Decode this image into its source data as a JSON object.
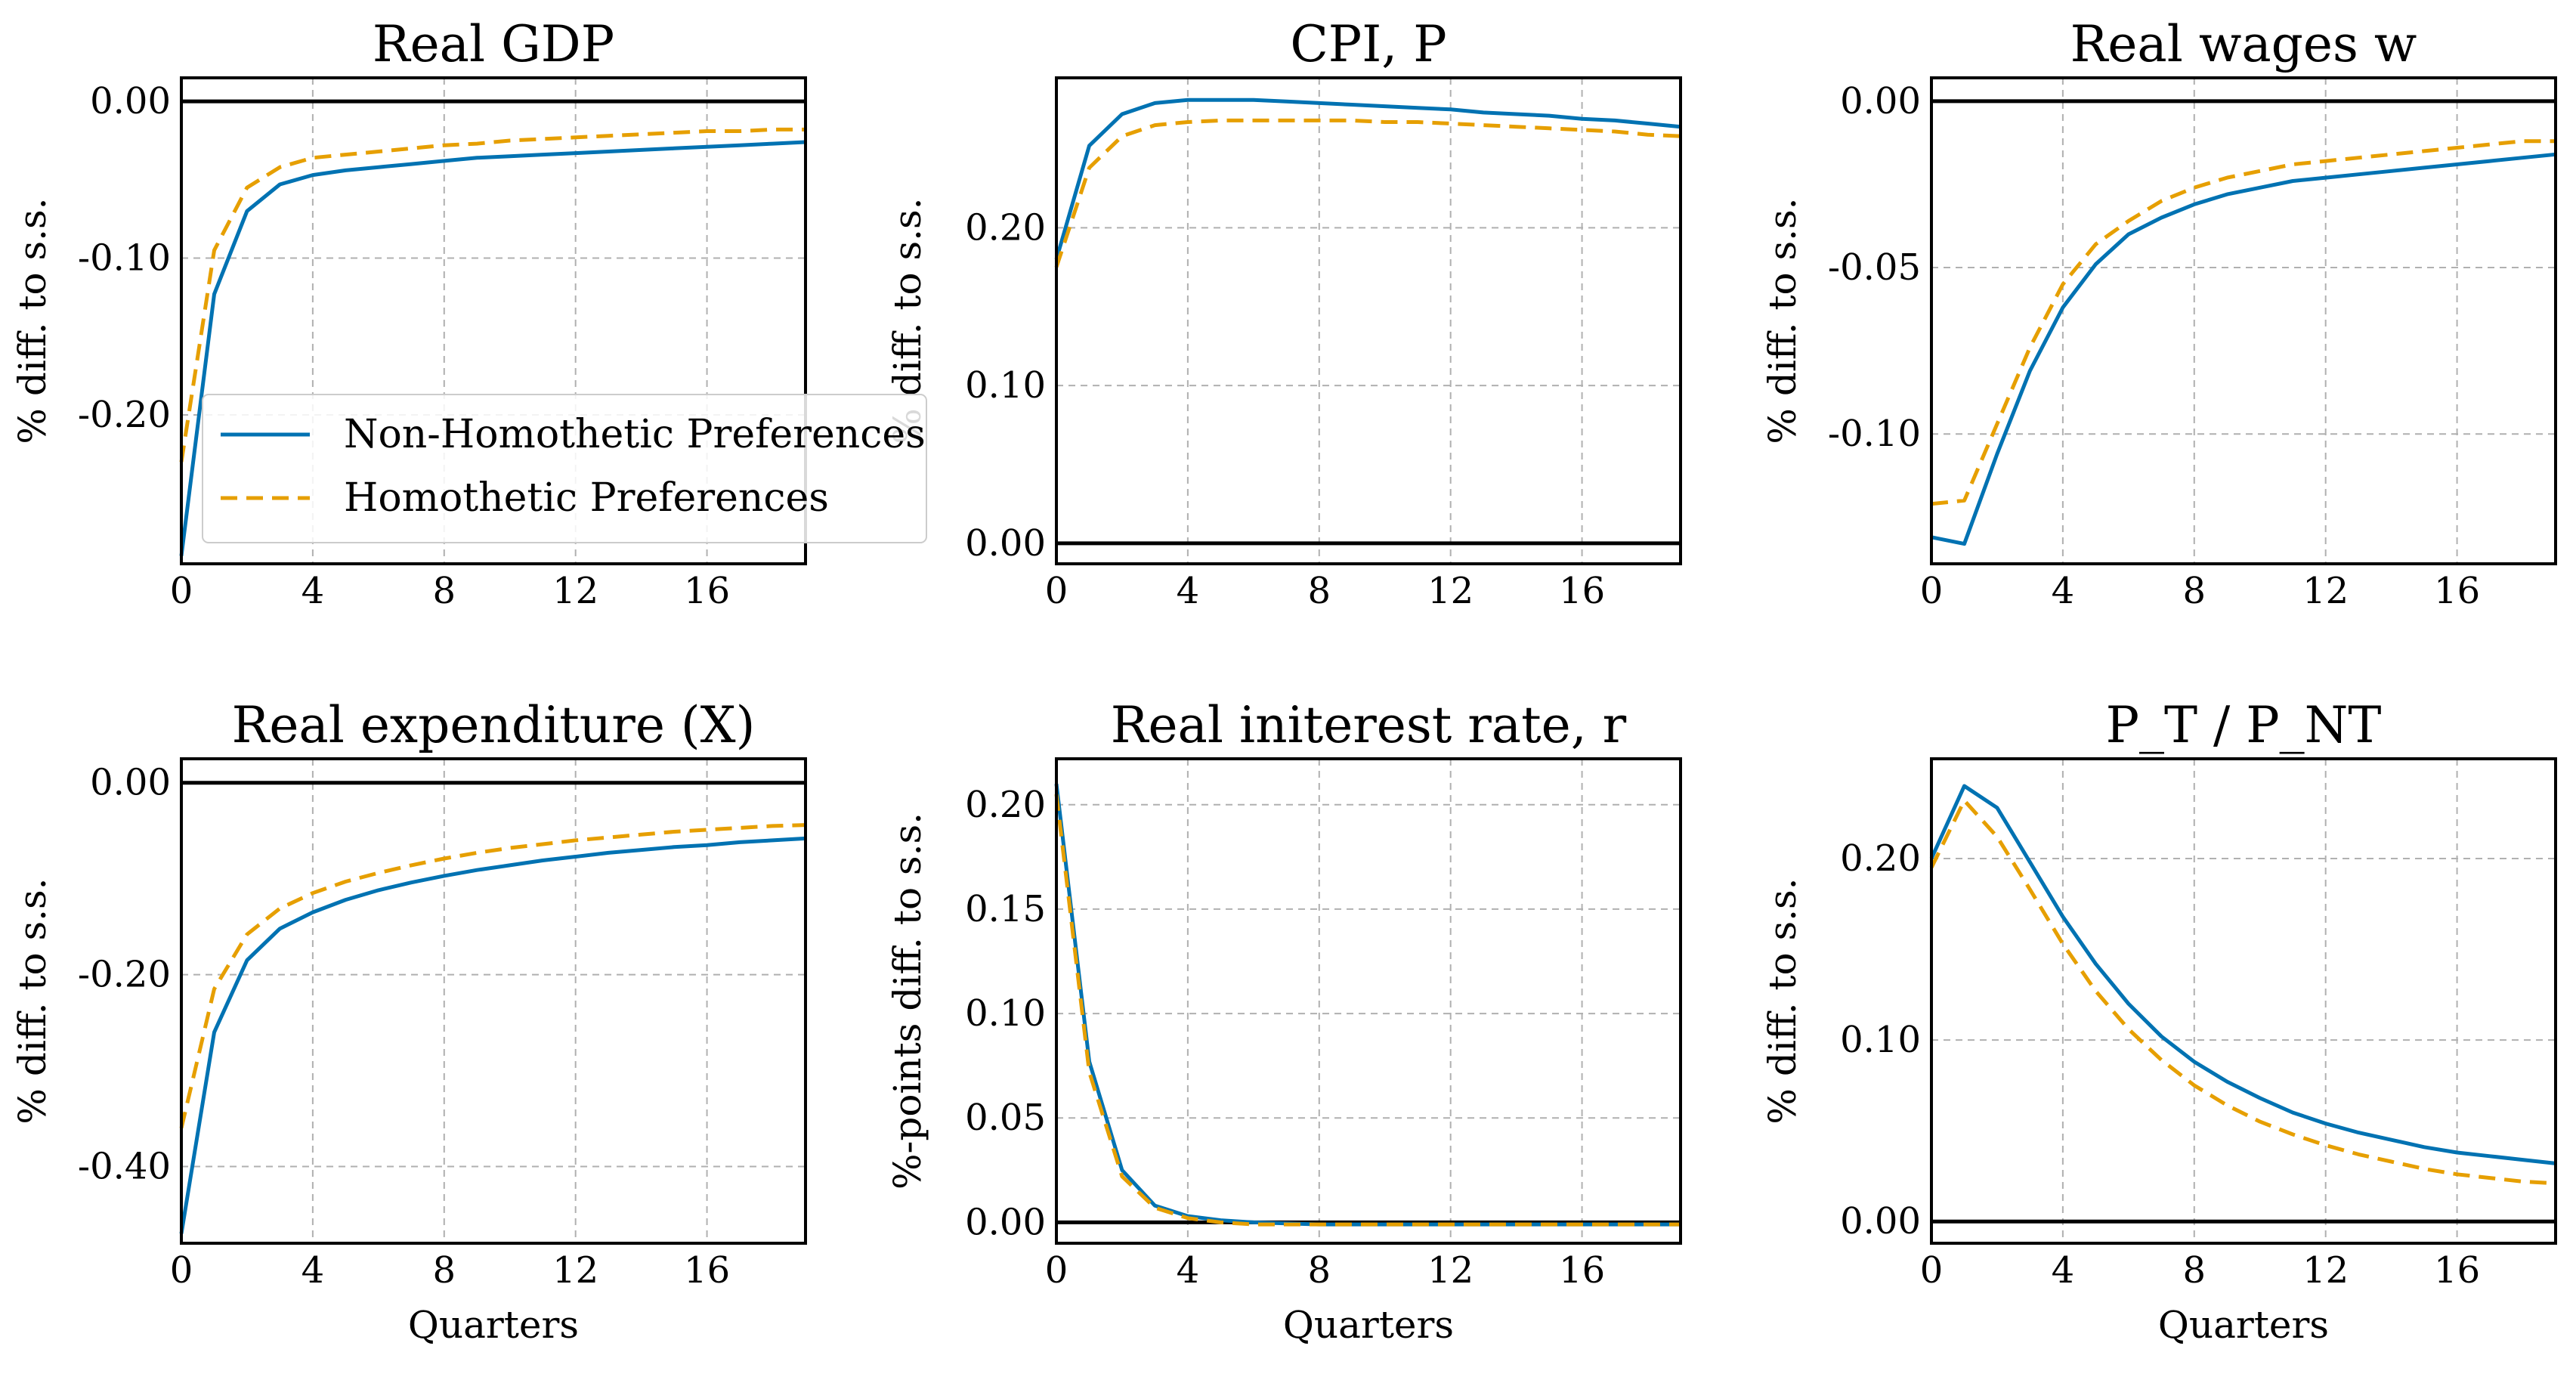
{
  "colors": {
    "non_homothetic": "#0072b2",
    "homothetic": "#e69f00"
  },
  "legend": {
    "location": "lower-right of first panel",
    "entries": [
      {
        "label": "Non-Homothetic Preferences",
        "style": "solid",
        "color": "#0072b2"
      },
      {
        "label": "Homothetic Preferences",
        "style": "dashed",
        "color": "#e69f00"
      }
    ]
  },
  "chart_data": [
    {
      "type": "line",
      "title": "Real GDP",
      "ylabel": "% diff. to s.s.",
      "xlabel": "",
      "xlim": [
        0,
        19
      ],
      "ylim": [
        -0.295,
        0.015
      ],
      "xticks": [
        0,
        4,
        8,
        12,
        16
      ],
      "yticks": [
        0.0,
        -0.1,
        -0.2
      ],
      "ytick_labels": [
        "0.00",
        "-0.10",
        "-0.20"
      ],
      "grid": true,
      "x": [
        0,
        1,
        2,
        3,
        4,
        5,
        6,
        7,
        8,
        9,
        10,
        11,
        12,
        13,
        14,
        15,
        16,
        17,
        18,
        19
      ],
      "series": [
        {
          "name": "Non-Homothetic Preferences",
          "style": "solid",
          "values": [
            -0.29,
            -0.123,
            -0.07,
            -0.053,
            -0.047,
            -0.044,
            -0.042,
            -0.04,
            -0.038,
            -0.036,
            -0.035,
            -0.034,
            -0.033,
            -0.032,
            -0.031,
            -0.03,
            -0.029,
            -0.028,
            -0.027,
            -0.026
          ]
        },
        {
          "name": "Homothetic Preferences",
          "style": "dashed",
          "values": [
            -0.23,
            -0.095,
            -0.055,
            -0.042,
            -0.036,
            -0.034,
            -0.032,
            -0.03,
            -0.028,
            -0.027,
            -0.025,
            -0.024,
            -0.023,
            -0.022,
            -0.021,
            -0.02,
            -0.019,
            -0.019,
            -0.018,
            -0.018
          ]
        }
      ]
    },
    {
      "type": "line",
      "title": "CPI, P",
      "ylabel": "% diff. to s.s.",
      "xlabel": "",
      "xlim": [
        0,
        19
      ],
      "ylim": [
        -0.013,
        0.295
      ],
      "xticks": [
        0,
        4,
        8,
        12,
        16
      ],
      "yticks": [
        0.0,
        0.1,
        0.2
      ],
      "ytick_labels": [
        "0.00",
        "0.10",
        "0.20"
      ],
      "grid": true,
      "x": [
        0,
        1,
        2,
        3,
        4,
        5,
        6,
        7,
        8,
        9,
        10,
        11,
        12,
        13,
        14,
        15,
        16,
        17,
        18,
        19
      ],
      "series": [
        {
          "name": "Non-Homothetic Preferences",
          "style": "solid",
          "values": [
            0.18,
            0.252,
            0.272,
            0.279,
            0.281,
            0.281,
            0.281,
            0.28,
            0.279,
            0.278,
            0.277,
            0.276,
            0.275,
            0.273,
            0.272,
            0.271,
            0.269,
            0.268,
            0.266,
            0.264
          ]
        },
        {
          "name": "Homothetic Preferences",
          "style": "dashed",
          "values": [
            0.175,
            0.238,
            0.258,
            0.265,
            0.267,
            0.268,
            0.268,
            0.268,
            0.268,
            0.268,
            0.267,
            0.267,
            0.266,
            0.265,
            0.264,
            0.263,
            0.262,
            0.261,
            0.259,
            0.258
          ]
        }
      ]
    },
    {
      "type": "line",
      "title": "Real wages w",
      "ylabel": "% diff. to s.s.",
      "xlabel": "",
      "xlim": [
        0,
        19
      ],
      "ylim": [
        -0.139,
        0.007
      ],
      "xticks": [
        0,
        4,
        8,
        12,
        16
      ],
      "yticks": [
        0.0,
        -0.05,
        -0.1
      ],
      "ytick_labels": [
        "0.00",
        "-0.05",
        "-0.10"
      ],
      "grid": true,
      "x": [
        0,
        1,
        2,
        3,
        4,
        5,
        6,
        7,
        8,
        9,
        10,
        11,
        12,
        13,
        14,
        15,
        16,
        17,
        18,
        19
      ],
      "series": [
        {
          "name": "Non-Homothetic Preferences",
          "style": "solid",
          "values": [
            -0.131,
            -0.133,
            -0.106,
            -0.081,
            -0.062,
            -0.049,
            -0.04,
            -0.035,
            -0.031,
            -0.028,
            -0.026,
            -0.024,
            -0.023,
            -0.022,
            -0.021,
            -0.02,
            -0.019,
            -0.018,
            -0.017,
            -0.016
          ]
        },
        {
          "name": "Homothetic Preferences",
          "style": "dashed",
          "values": [
            -0.121,
            -0.12,
            -0.097,
            -0.074,
            -0.055,
            -0.043,
            -0.036,
            -0.03,
            -0.026,
            -0.023,
            -0.021,
            -0.019,
            -0.018,
            -0.017,
            -0.016,
            -0.015,
            -0.014,
            -0.013,
            -0.012,
            -0.012
          ]
        }
      ]
    },
    {
      "type": "line",
      "title": "Real expenditure (X)",
      "ylabel": "% diff. to s.s.",
      "xlabel": "Quarters",
      "xlim": [
        0,
        19
      ],
      "ylim": [
        -0.48,
        0.025
      ],
      "xticks": [
        0,
        4,
        8,
        12,
        16
      ],
      "yticks": [
        0.0,
        -0.2,
        -0.4
      ],
      "ytick_labels": [
        "0.00",
        "-0.20",
        "-0.40"
      ],
      "grid": true,
      "x": [
        0,
        1,
        2,
        3,
        4,
        5,
        6,
        7,
        8,
        9,
        10,
        11,
        12,
        13,
        14,
        15,
        16,
        17,
        18,
        19
      ],
      "series": [
        {
          "name": "Non-Homothetic Preferences",
          "style": "solid",
          "values": [
            -0.47,
            -0.26,
            -0.185,
            -0.152,
            -0.135,
            -0.122,
            -0.112,
            -0.104,
            -0.097,
            -0.091,
            -0.086,
            -0.081,
            -0.077,
            -0.073,
            -0.07,
            -0.067,
            -0.065,
            -0.062,
            -0.06,
            -0.058
          ]
        },
        {
          "name": "Homothetic Preferences",
          "style": "dashed",
          "values": [
            -0.36,
            -0.215,
            -0.158,
            -0.131,
            -0.115,
            -0.103,
            -0.094,
            -0.086,
            -0.079,
            -0.073,
            -0.068,
            -0.064,
            -0.06,
            -0.057,
            -0.054,
            -0.051,
            -0.049,
            -0.047,
            -0.045,
            -0.044
          ]
        }
      ]
    },
    {
      "type": "line",
      "title": "Real initerest rate, r",
      "ylabel": "%-points diff. to s.s.",
      "xlabel": "Quarters",
      "xlim": [
        0,
        19
      ],
      "ylim": [
        -0.01,
        0.222
      ],
      "xticks": [
        0,
        4,
        8,
        12,
        16
      ],
      "yticks": [
        0.0,
        0.05,
        0.1,
        0.15,
        0.2
      ],
      "ytick_labels": [
        "0.00",
        "0.05",
        "0.10",
        "0.15",
        "0.20"
      ],
      "grid": true,
      "x": [
        0,
        1,
        2,
        3,
        4,
        5,
        6,
        7,
        8,
        9,
        10,
        11,
        12,
        13,
        14,
        15,
        16,
        17,
        18,
        19
      ],
      "series": [
        {
          "name": "Non-Homothetic Preferences",
          "style": "solid",
          "values": [
            0.21,
            0.077,
            0.025,
            0.008,
            0.003,
            0.001,
            0.0,
            -0.0005,
            -0.001,
            -0.001,
            -0.001,
            -0.001,
            -0.001,
            -0.001,
            -0.001,
            -0.001,
            -0.001,
            -0.001,
            -0.001,
            -0.001
          ]
        },
        {
          "name": "Homothetic Preferences",
          "style": "dashed",
          "values": [
            0.205,
            0.072,
            0.022,
            0.007,
            0.002,
            0.0,
            -0.001,
            -0.001,
            -0.001,
            -0.001,
            -0.001,
            -0.001,
            -0.001,
            -0.001,
            -0.001,
            -0.001,
            -0.001,
            -0.001,
            -0.001,
            -0.001
          ]
        }
      ]
    },
    {
      "type": "line",
      "title": "P_T / P_NT",
      "ylabel": "% diff. to s.s.",
      "xlabel": "Quarters",
      "xlim": [
        0,
        19
      ],
      "ylim": [
        -0.012,
        0.255
      ],
      "xticks": [
        0,
        4,
        8,
        12,
        16
      ],
      "yticks": [
        0.0,
        0.1,
        0.2
      ],
      "ytick_labels": [
        "0.00",
        "0.10",
        "0.20"
      ],
      "grid": true,
      "x": [
        0,
        1,
        2,
        3,
        4,
        5,
        6,
        7,
        8,
        9,
        10,
        11,
        12,
        13,
        14,
        15,
        16,
        17,
        18,
        19
      ],
      "series": [
        {
          "name": "Non-Homothetic Preferences",
          "style": "solid",
          "values": [
            0.2,
            0.24,
            0.228,
            0.198,
            0.168,
            0.142,
            0.12,
            0.102,
            0.088,
            0.077,
            0.068,
            0.06,
            0.054,
            0.049,
            0.045,
            0.041,
            0.038,
            0.036,
            0.034,
            0.032
          ]
        },
        {
          "name": "Homothetic Preferences",
          "style": "dashed",
          "values": [
            0.195,
            0.232,
            0.212,
            0.183,
            0.153,
            0.127,
            0.106,
            0.089,
            0.075,
            0.064,
            0.055,
            0.048,
            0.042,
            0.037,
            0.033,
            0.029,
            0.026,
            0.024,
            0.022,
            0.021
          ]
        }
      ]
    }
  ]
}
